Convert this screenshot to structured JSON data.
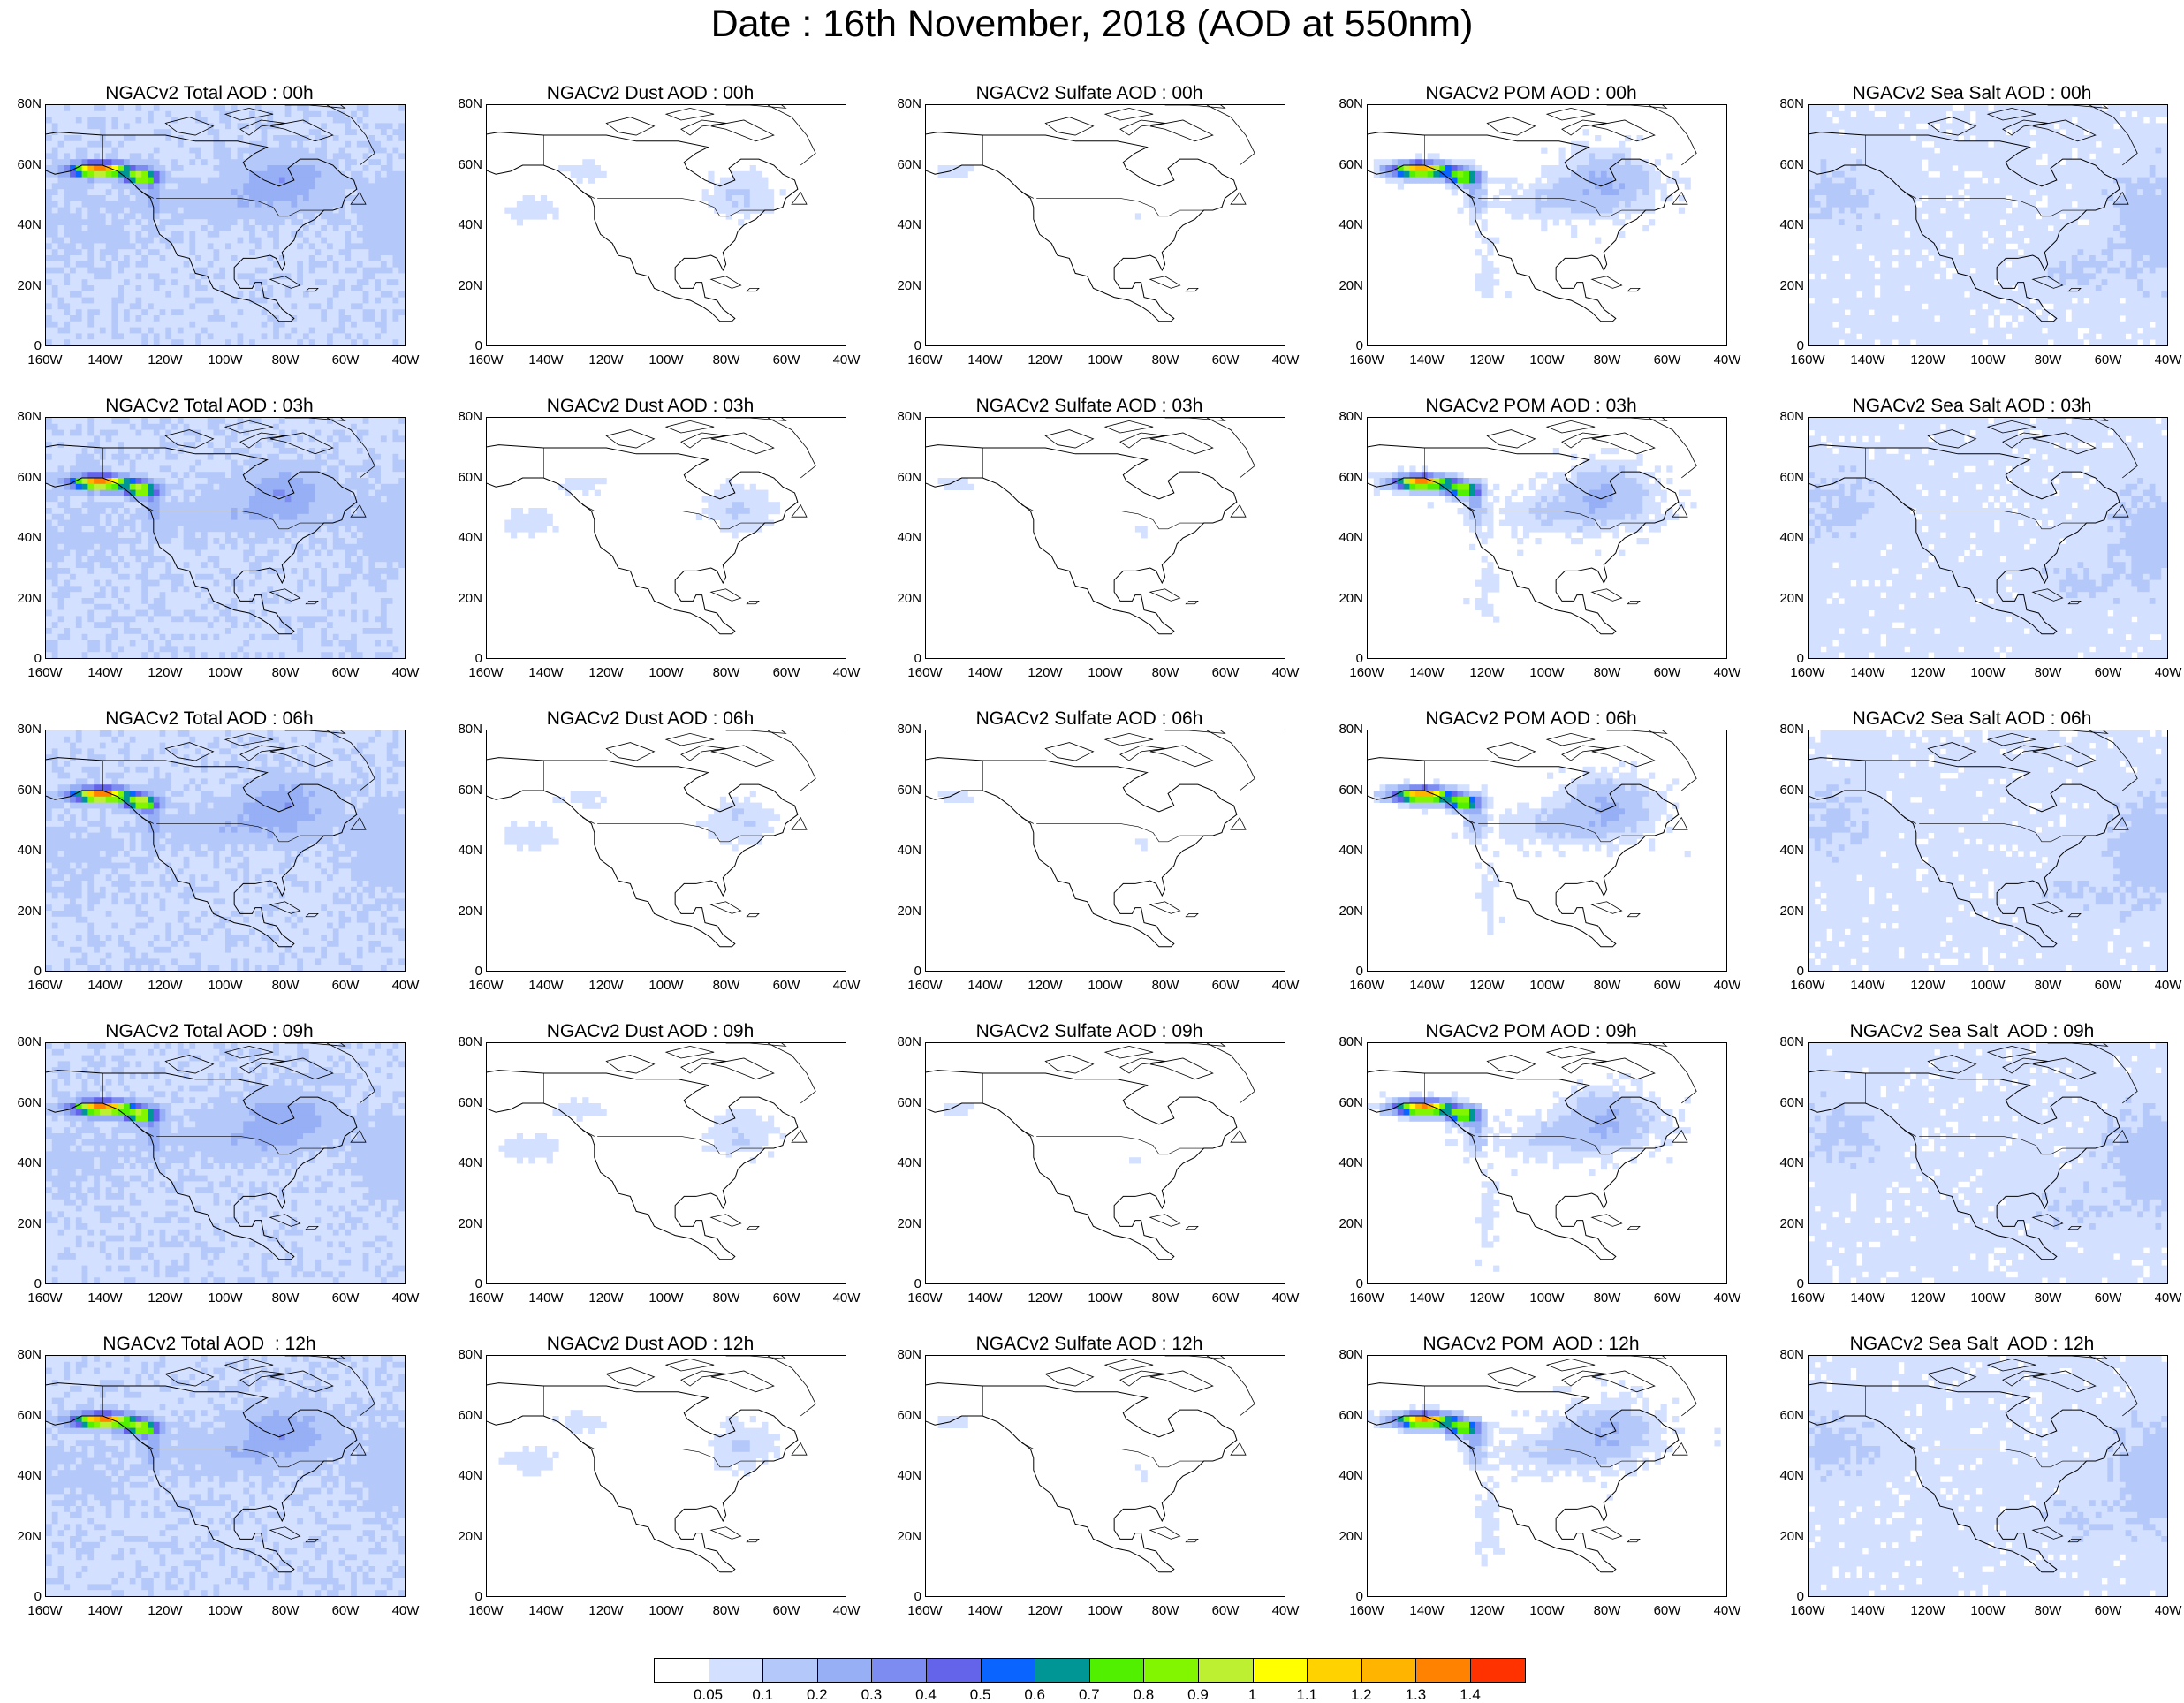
{
  "title": "Date : 16th November, 2018 (AOD at 550nm)",
  "panel_titles": [
    [
      "NGACv2 Total AOD : 00h",
      "NGACv2 Dust AOD : 00h",
      "NGACv2 Sulfate AOD : 00h",
      "NGACv2 POM AOD : 00h",
      "NGACv2 Sea Salt AOD : 00h"
    ],
    [
      "NGACv2 Total AOD : 03h",
      "NGACv2 Dust AOD : 03h",
      "NGACv2 Sulfate AOD : 03h",
      "NGACv2 POM AOD : 03h",
      "NGACv2 Sea Salt AOD : 03h"
    ],
    [
      "NGACv2 Total AOD : 06h",
      "NGACv2 Dust AOD : 06h",
      "NGACv2 Sulfate AOD : 06h",
      "NGACv2 POM AOD : 06h",
      "NGACv2 Sea Salt AOD : 06h"
    ],
    [
      "NGACv2 Total AOD : 09h",
      "NGACv2 Dust AOD : 09h",
      "NGACv2 Sulfate AOD : 09h",
      "NGACv2 POM AOD : 09h",
      "NGACv2 Sea Salt  AOD : 09h"
    ],
    [
      "NGACv2 Total AOD  : 12h",
      "NGACv2 Dust AOD : 12h",
      "NGACv2 Sulfate AOD : 12h",
      "NGACv2 POM  AOD : 12h",
      "NGACv2 Sea Salt  AOD : 12h"
    ]
  ],
  "lat_ticks": [
    "80N",
    "60N",
    "40N",
    "20N",
    "0"
  ],
  "lon_ticks": [
    "160W",
    "140W",
    "120W",
    "100W",
    "80W",
    "60W",
    "40W"
  ],
  "colorbar": {
    "colors": [
      "#ffffff",
      "#d4e0ff",
      "#b4c8fa",
      "#96aff5",
      "#7d8cf0",
      "#6464eb",
      "#0a64ff",
      "#009696",
      "#50f000",
      "#82f500",
      "#bef032",
      "#ffff00",
      "#ffd200",
      "#ffb400",
      "#ff8200",
      "#ff3200"
    ],
    "labels": [
      "0.05",
      "0.1",
      "0.2",
      "0.3",
      "0.4",
      "0.5",
      "0.6",
      "0.7",
      "0.8",
      "0.9",
      "1",
      "1.1",
      "1.2",
      "1.3",
      "1.4"
    ]
  }
}
